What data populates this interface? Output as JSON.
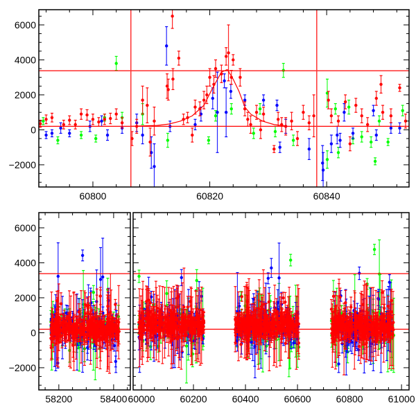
{
  "chart_data": [
    {
      "type": "scatter",
      "title": "",
      "xlabel": "",
      "ylabel": "",
      "xlim": [
        60790.75,
        60854.1
      ],
      "ylim": [
        -3270,
        6870
      ],
      "xticks": [
        "60800",
        "60820",
        "60840"
      ],
      "yticks": [
        "6000",
        "4000",
        "2000",
        "0",
        "−2000"
      ],
      "xtick_values": [
        60800,
        60820,
        60840
      ],
      "ytick_values": [
        6000,
        4000,
        2000,
        0,
        -2000
      ],
      "hlines": [
        3380,
        200
      ],
      "vlines": [
        60806.5,
        60838.3
      ],
      "model_curve": [
        [
          60806.5,
          200
        ],
        [
          60811,
          250
        ],
        [
          60813,
          330
        ],
        [
          60815,
          500
        ],
        [
          60817,
          800
        ],
        [
          60819,
          1400
        ],
        [
          60820.5,
          2400
        ],
        [
          60822,
          3300
        ],
        [
          60823,
          3450
        ],
        [
          60824,
          2900
        ],
        [
          60825,
          2200
        ],
        [
          60826,
          1300
        ],
        [
          60827,
          900
        ],
        [
          60829,
          500
        ],
        [
          60831,
          300
        ],
        [
          60833,
          220
        ]
      ],
      "series": [
        {
          "name": "red",
          "color": "#ff0000",
          "points": [
            [
              60791,
              350,
              200
            ],
            [
              60792,
              600,
              250
            ],
            [
              60793,
              700,
              250
            ],
            [
              60795,
              300,
              250
            ],
            [
              60796,
              550,
              250
            ],
            [
              60797,
              300,
              250
            ],
            [
              60798,
              900,
              300
            ],
            [
              60799,
              850,
              300
            ],
            [
              60800,
              600,
              300
            ],
            [
              60801,
              450,
              250
            ],
            [
              60802,
              600,
              300
            ],
            [
              60803,
              650,
              300
            ],
            [
              60804,
              900,
              300
            ],
            [
              60805,
              400,
              300
            ],
            [
              60806.7,
              -500,
              400
            ],
            [
              60807.5,
              200,
              400
            ],
            [
              60808.5,
              1700,
              800
            ],
            [
              60809.3,
              1400,
              1000
            ],
            [
              60809.8,
              -700,
              800
            ],
            [
              60810.5,
              500,
              800
            ],
            [
              60812.7,
              2500,
              700
            ],
            [
              60812.9,
              2300,
              600
            ],
            [
              60813.6,
              6500,
              700
            ],
            [
              60813.7,
              2900,
              600
            ],
            [
              60814.7,
              4100,
              400
            ],
            [
              60815.5,
              600,
              300
            ],
            [
              60816.2,
              700,
              300
            ],
            [
              60817,
              -300,
              400
            ],
            [
              60817.5,
              1300,
              400
            ],
            [
              60818.3,
              1200,
              400
            ],
            [
              60819,
              1700,
              500
            ],
            [
              60819.5,
              2000,
              500
            ],
            [
              60820,
              3000,
              500
            ],
            [
              60820.7,
              2600,
              500
            ],
            [
              60821,
              3500,
              500
            ],
            [
              60822,
              3200,
              500
            ],
            [
              60822.8,
              4200,
              500
            ],
            [
              60823.2,
              4400,
              1600
            ],
            [
              60823.7,
              3000,
              400
            ],
            [
              60824,
              4000,
              300
            ],
            [
              60825.2,
              3000,
              500
            ],
            [
              60826,
              1200,
              400
            ],
            [
              60826.5,
              600,
              400
            ],
            [
              60827,
              300,
              500
            ],
            [
              60828,
              1000,
              400
            ],
            [
              60828.7,
              0,
              500
            ],
            [
              60829.2,
              900,
              400
            ],
            [
              60831,
              -1100,
              200
            ],
            [
              60831.7,
              600,
              400
            ],
            [
              60832.3,
              300,
              400
            ],
            [
              60833,
              200,
              500
            ],
            [
              60834,
              500,
              500
            ],
            [
              60835,
              -500,
              400
            ],
            [
              60836,
              1000,
              400
            ],
            [
              60837,
              400,
              400
            ],
            [
              60837.8,
              800,
              1200
            ],
            [
              60840.3,
              1700,
              500
            ],
            [
              60840.8,
              800,
              400
            ],
            [
              60842,
              500,
              300
            ],
            [
              60843.2,
              1600,
              400
            ],
            [
              60844,
              -800,
              400
            ],
            [
              60845,
              1400,
              400
            ],
            [
              60846,
              800,
              400
            ],
            [
              60847,
              300,
              400
            ],
            [
              60848.5,
              1800,
              400
            ],
            [
              60849.3,
              2600,
              500
            ],
            [
              60849.6,
              1000,
              400
            ],
            [
              60851,
              800,
              400
            ],
            [
              60852.5,
              2400,
              200
            ],
            [
              60853.5,
              500,
              400
            ]
          ]
        },
        {
          "name": "blue",
          "color": "#0000ff",
          "points": [
            [
              60792,
              -300,
              200
            ],
            [
              60793,
              -200,
              200
            ],
            [
              60794.5,
              100,
              300
            ],
            [
              60796,
              -200,
              200
            ],
            [
              60799.5,
              200,
              300
            ],
            [
              60801.5,
              500,
              300
            ],
            [
              60802.5,
              -300,
              300
            ],
            [
              60805,
              100,
              300
            ],
            [
              60807.5,
              400,
              500
            ],
            [
              60808.5,
              -300,
              500
            ],
            [
              60810,
              -1300,
              900
            ],
            [
              60810.5,
              -2100,
              1300
            ],
            [
              60812.6,
              4800,
              1100
            ],
            [
              60813.2,
              200,
              300
            ],
            [
              60817.5,
              300,
              300
            ],
            [
              60818.5,
              900,
              400
            ],
            [
              60820.5,
              1800,
              600
            ],
            [
              60821.3,
              1000,
              2300
            ],
            [
              60822.5,
              2800,
              400
            ],
            [
              60822.8,
              1000,
              1400
            ],
            [
              60823.6,
              2200,
              400
            ],
            [
              60826,
              1700,
              300
            ],
            [
              60829.2,
              1700,
              300
            ],
            [
              60831.5,
              1400,
              300
            ],
            [
              60832,
              -1000,
              300
            ],
            [
              60833,
              200,
              400
            ],
            [
              60837,
              -1100,
              600
            ],
            [
              60839.3,
              -1900,
              1000
            ],
            [
              60839.4,
              -2300,
              1000
            ],
            [
              60840.8,
              -800,
              500
            ],
            [
              60841.8,
              -300,
              500
            ],
            [
              60842.3,
              -600,
              400
            ],
            [
              60843,
              1000,
              500
            ],
            [
              60844.5,
              -200,
              300
            ],
            [
              60848,
              1100,
              300
            ],
            [
              60848.5,
              -300,
              300
            ],
            [
              60851,
              100,
              300
            ],
            [
              60852.5,
              100,
              300
            ]
          ]
        },
        {
          "name": "green",
          "color": "#00ff00",
          "points": [
            [
              60791.5,
              500,
              200
            ],
            [
              60794,
              -600,
              200
            ],
            [
              60798,
              -300,
              200
            ],
            [
              60800.5,
              -500,
              200
            ],
            [
              60802,
              700,
              200
            ],
            [
              60804,
              3800,
              400
            ],
            [
              60805,
              700,
              300
            ],
            [
              60808.5,
              900,
              600
            ],
            [
              60812.8,
              -600,
              400
            ],
            [
              60819.8,
              -600,
              200
            ],
            [
              60821,
              800,
              300
            ],
            [
              60823.7,
              1200,
              300
            ],
            [
              60827.5,
              -200,
              300
            ],
            [
              60828.6,
              1200,
              300
            ],
            [
              60831.2,
              -100,
              300
            ],
            [
              60832.6,
              3400,
              400
            ],
            [
              60834.3,
              -600,
              300
            ],
            [
              60840.1,
              2100,
              800
            ],
            [
              60840.1,
              -1700,
              500
            ],
            [
              60841.5,
              1200,
              300
            ],
            [
              60842,
              -1300,
              300
            ],
            [
              60843.8,
              1300,
              400
            ],
            [
              60844.5,
              -500,
              300
            ],
            [
              60846,
              -400,
              300
            ],
            [
              60847.6,
              -700,
              300
            ],
            [
              60848.3,
              -1800,
              200
            ],
            [
              60849,
              500,
              300
            ],
            [
              60850.5,
              -700,
              200
            ],
            [
              60853,
              1100,
              300
            ]
          ]
        }
      ]
    },
    {
      "type": "scatter",
      "title": "",
      "xlabel": "",
      "ylabel": "",
      "broken_axis": true,
      "segments": [
        {
          "xlim": [
            58127,
            58461
          ],
          "xticks": [
            "58200",
            "58400"
          ],
          "xtick_values": [
            58200,
            58400
          ]
        },
        {
          "xlim": [
            59968,
            61029
          ],
          "xticks": [
            "60000",
            "60200",
            "60400",
            "60600",
            "60800",
            "61000"
          ],
          "xtick_values": [
            60000,
            60200,
            60400,
            60600,
            60800,
            61000
          ]
        }
      ],
      "ylim": [
        -3270,
        6870
      ],
      "yticks": [
        "6000",
        "4000",
        "2000",
        "0",
        "−2000"
      ],
      "ytick_values": [
        6000,
        4000,
        2000,
        0,
        -2000
      ],
      "hlines": [
        3380,
        200
      ],
      "seasons": [
        {
          "range": [
            58170,
            58420
          ],
          "mean": 200
        },
        {
          "range": [
            59990,
            60240
          ],
          "mean": 450
        },
        {
          "range": [
            60360,
            60605
          ],
          "mean": 450
        },
        {
          "range": [
            60730,
            60970
          ],
          "mean": 350
        }
      ],
      "series": [
        {
          "name": "green",
          "color": "#00ff00",
          "points_per_season": 70,
          "scatter": 1500
        },
        {
          "name": "blue",
          "color": "#0000ff",
          "points_per_season": 90,
          "scatter": 1300
        },
        {
          "name": "red",
          "color": "#ff0000",
          "points_per_season": 260,
          "scatter": 700
        }
      ]
    }
  ]
}
